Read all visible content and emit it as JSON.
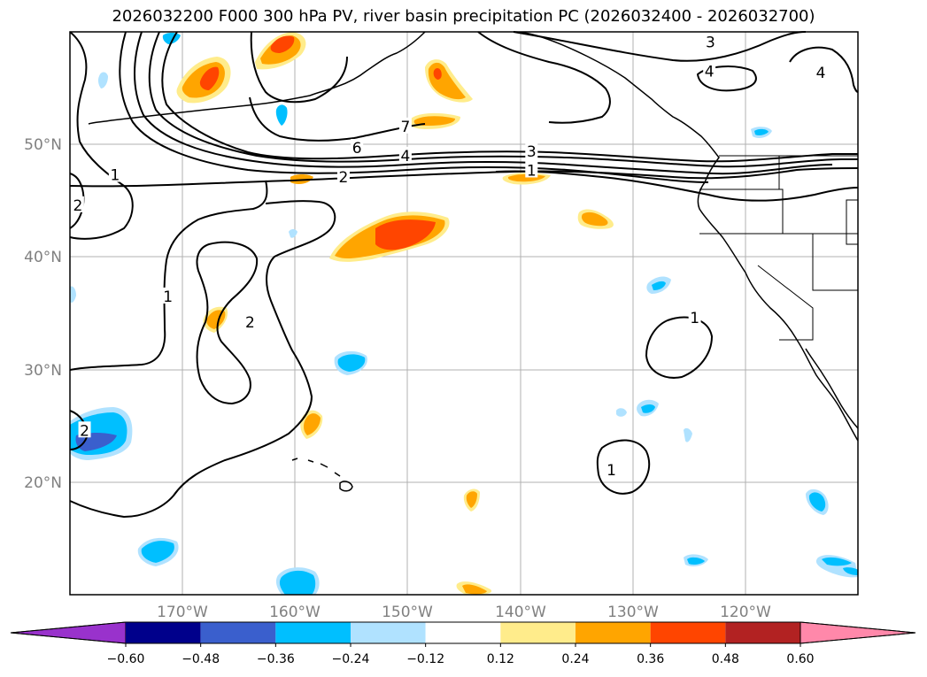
{
  "title": "2026032200 F000 300 hPa PV, river basin precipitation PC (2026032400 - 2026032700)",
  "map": {
    "lon_range": [
      -180,
      -110
    ],
    "lat_range": [
      10,
      60
    ],
    "lon_ticks": [
      {
        "value": -170,
        "label": "170°W"
      },
      {
        "value": -160,
        "label": "160°W"
      },
      {
        "value": -150,
        "label": "150°W"
      },
      {
        "value": -140,
        "label": "140°W"
      },
      {
        "value": -130,
        "label": "130°W"
      },
      {
        "value": -120,
        "label": "120°W"
      }
    ],
    "lat_ticks": [
      {
        "value": 50,
        "label": "50°N"
      },
      {
        "value": 40,
        "label": "40°N"
      },
      {
        "value": 30,
        "label": "30°N"
      },
      {
        "value": 20,
        "label": "20°N"
      }
    ],
    "contour_labels": [
      {
        "text": "3",
        "lon": -123.1,
        "lat": 59.1
      },
      {
        "text": "4",
        "lon": -123.2,
        "lat": 56.5
      },
      {
        "text": "4",
        "lon": -113.3,
        "lat": 56.4
      },
      {
        "text": "7",
        "lon": -150.2,
        "lat": 51.6
      },
      {
        "text": "6",
        "lon": -154.5,
        "lat": 49.7
      },
      {
        "text": "4",
        "lon": -150.2,
        "lat": 49.0
      },
      {
        "text": "3",
        "lon": -139.0,
        "lat": 49.4
      },
      {
        "text": "1",
        "lon": -139.0,
        "lat": 47.7
      },
      {
        "text": "2",
        "lon": -155.7,
        "lat": 47.1
      },
      {
        "text": "1",
        "lon": -176.0,
        "lat": 47.3
      },
      {
        "text": "2",
        "lon": -179.3,
        "lat": 44.6
      },
      {
        "text": "1",
        "lon": -171.3,
        "lat": 36.5
      },
      {
        "text": "2",
        "lon": -164.0,
        "lat": 34.2
      },
      {
        "text": "1",
        "lon": -124.5,
        "lat": 34.6
      },
      {
        "text": "2",
        "lon": -178.7,
        "lat": 24.6
      },
      {
        "text": "1",
        "lon": -131.9,
        "lat": 21.1
      }
    ]
  },
  "colorbar": {
    "levels": [
      "−0.60",
      "−0.48",
      "−0.36",
      "−0.24",
      "−0.12",
      "0.12",
      "0.24",
      "0.36",
      "0.48",
      "0.60"
    ],
    "colors": [
      "#9932cc",
      "#00008b",
      "#3a5fcd",
      "#00bfff",
      "#b0e2ff",
      "#ffffff",
      "#ffec8b",
      "#ffa500",
      "#ff4500",
      "#b22222",
      "#ff88aa"
    ]
  }
}
